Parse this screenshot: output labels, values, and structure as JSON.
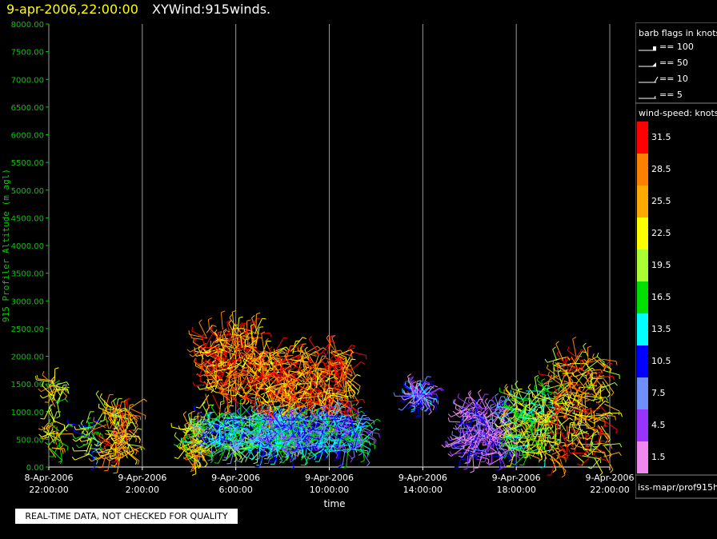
{
  "header": {
    "time": "9-apr-2006,22:00:00",
    "name": "XYWind:915winds."
  },
  "footer": {
    "qc_note": "REAL-TIME DATA, NOT CHECKED FOR QUALITY",
    "source": "iss-mapr/prof915h"
  },
  "legend": {
    "barb_title": "barb flags in knots",
    "barbs": [
      "== 100",
      "== 50",
      "== 10",
      "== 5"
    ],
    "speed_title": "wind-speed: knots",
    "speed_bins": [
      {
        "label": "31.5",
        "color": "#ff0000"
      },
      {
        "label": "28.5",
        "color": "#ff7f00"
      },
      {
        "label": "25.5",
        "color": "#ffaa00"
      },
      {
        "label": "22.5",
        "color": "#ffff00"
      },
      {
        "label": "19.5",
        "color": "#aaff33"
      },
      {
        "label": "16.5",
        "color": "#00e000"
      },
      {
        "label": "13.5",
        "color": "#00ffff"
      },
      {
        "label": "10.5",
        "color": "#0000ff"
      },
      {
        "label": "7.5",
        "color": "#6f8fff"
      },
      {
        "label": "4.5",
        "color": "#9933ff"
      },
      {
        "label": "1.5",
        "color": "#ee88ee"
      }
    ]
  },
  "chart_data": {
    "type": "scatter",
    "title": "XYWind:915winds.",
    "xlabel": "time",
    "ylabel": "915 Profiler Altitude (m agl)",
    "xlim": [
      0,
      24
    ],
    "ylim": [
      0,
      8000
    ],
    "grid": "vertical lines at x ticks",
    "y_ticks": [
      "0.00",
      "500.00",
      "1000.00",
      "1500.00",
      "2000.00",
      "2500.00",
      "3000.00",
      "3500.00",
      "4000.00",
      "4500.00",
      "5000.00",
      "5500.00",
      "6000.00",
      "6500.00",
      "7000.00",
      "7500.00",
      "8000.00"
    ],
    "x_ticks": [
      {
        "date": "8-Apr-2006",
        "time": "22:00:00"
      },
      {
        "date": "9-Apr-2006",
        "time": "2:00:00"
      },
      {
        "date": "9-Apr-2006",
        "time": "6:00:00"
      },
      {
        "date": "9-Apr-2006",
        "time": "10:00:00"
      },
      {
        "date": "9-Apr-2006",
        "time": "14:00:00"
      },
      {
        "date": "9-Apr-2006",
        "time": "18:00:00"
      },
      {
        "date": "9-Apr-2006",
        "time": "22:00:00"
      }
    ],
    "series": [
      {
        "x": [
          0.0,
          0.5
        ],
        "ylim": [
          150,
          1600
        ],
        "dom": 22.5
      },
      {
        "x": [
          1.6,
          1.9
        ],
        "ylim": [
          200,
          800
        ],
        "dom": 16.5
      },
      {
        "x": [
          2.4,
          3.5
        ],
        "ylim": [
          150,
          1100
        ],
        "dom": 25.5
      },
      {
        "x": [
          5.8,
          6.5
        ],
        "ylim": [
          200,
          800
        ],
        "dom": 22.5
      },
      {
        "x": [
          6.5,
          10.5
        ],
        "ylim": [
          300,
          900
        ],
        "dom": 13.5
      },
      {
        "x": [
          6.6,
          9.0
        ],
        "ylim": [
          1300,
          2500
        ],
        "dom": 28.5
      },
      {
        "x": [
          9.0,
          13.0
        ],
        "ylim": [
          900,
          2100
        ],
        "dom": 28.5
      },
      {
        "x": [
          9.0,
          13.5
        ],
        "ylim": [
          300,
          900
        ],
        "dom": 10.5
      },
      {
        "x": [
          15.5,
          16.2
        ],
        "ylim": [
          1250,
          1350
        ],
        "dom": 7.5
      },
      {
        "x": [
          17.6,
          19.7
        ],
        "ylim": [
          200,
          1100
        ],
        "dom": 4.5
      },
      {
        "x": [
          19.7,
          21.5
        ],
        "ylim": [
          200,
          1400
        ],
        "dom": 19.5
      },
      {
        "x": [
          21.5,
          23.8
        ],
        "ylim": [
          150,
          2000
        ],
        "dom": 25.5
      }
    ]
  }
}
